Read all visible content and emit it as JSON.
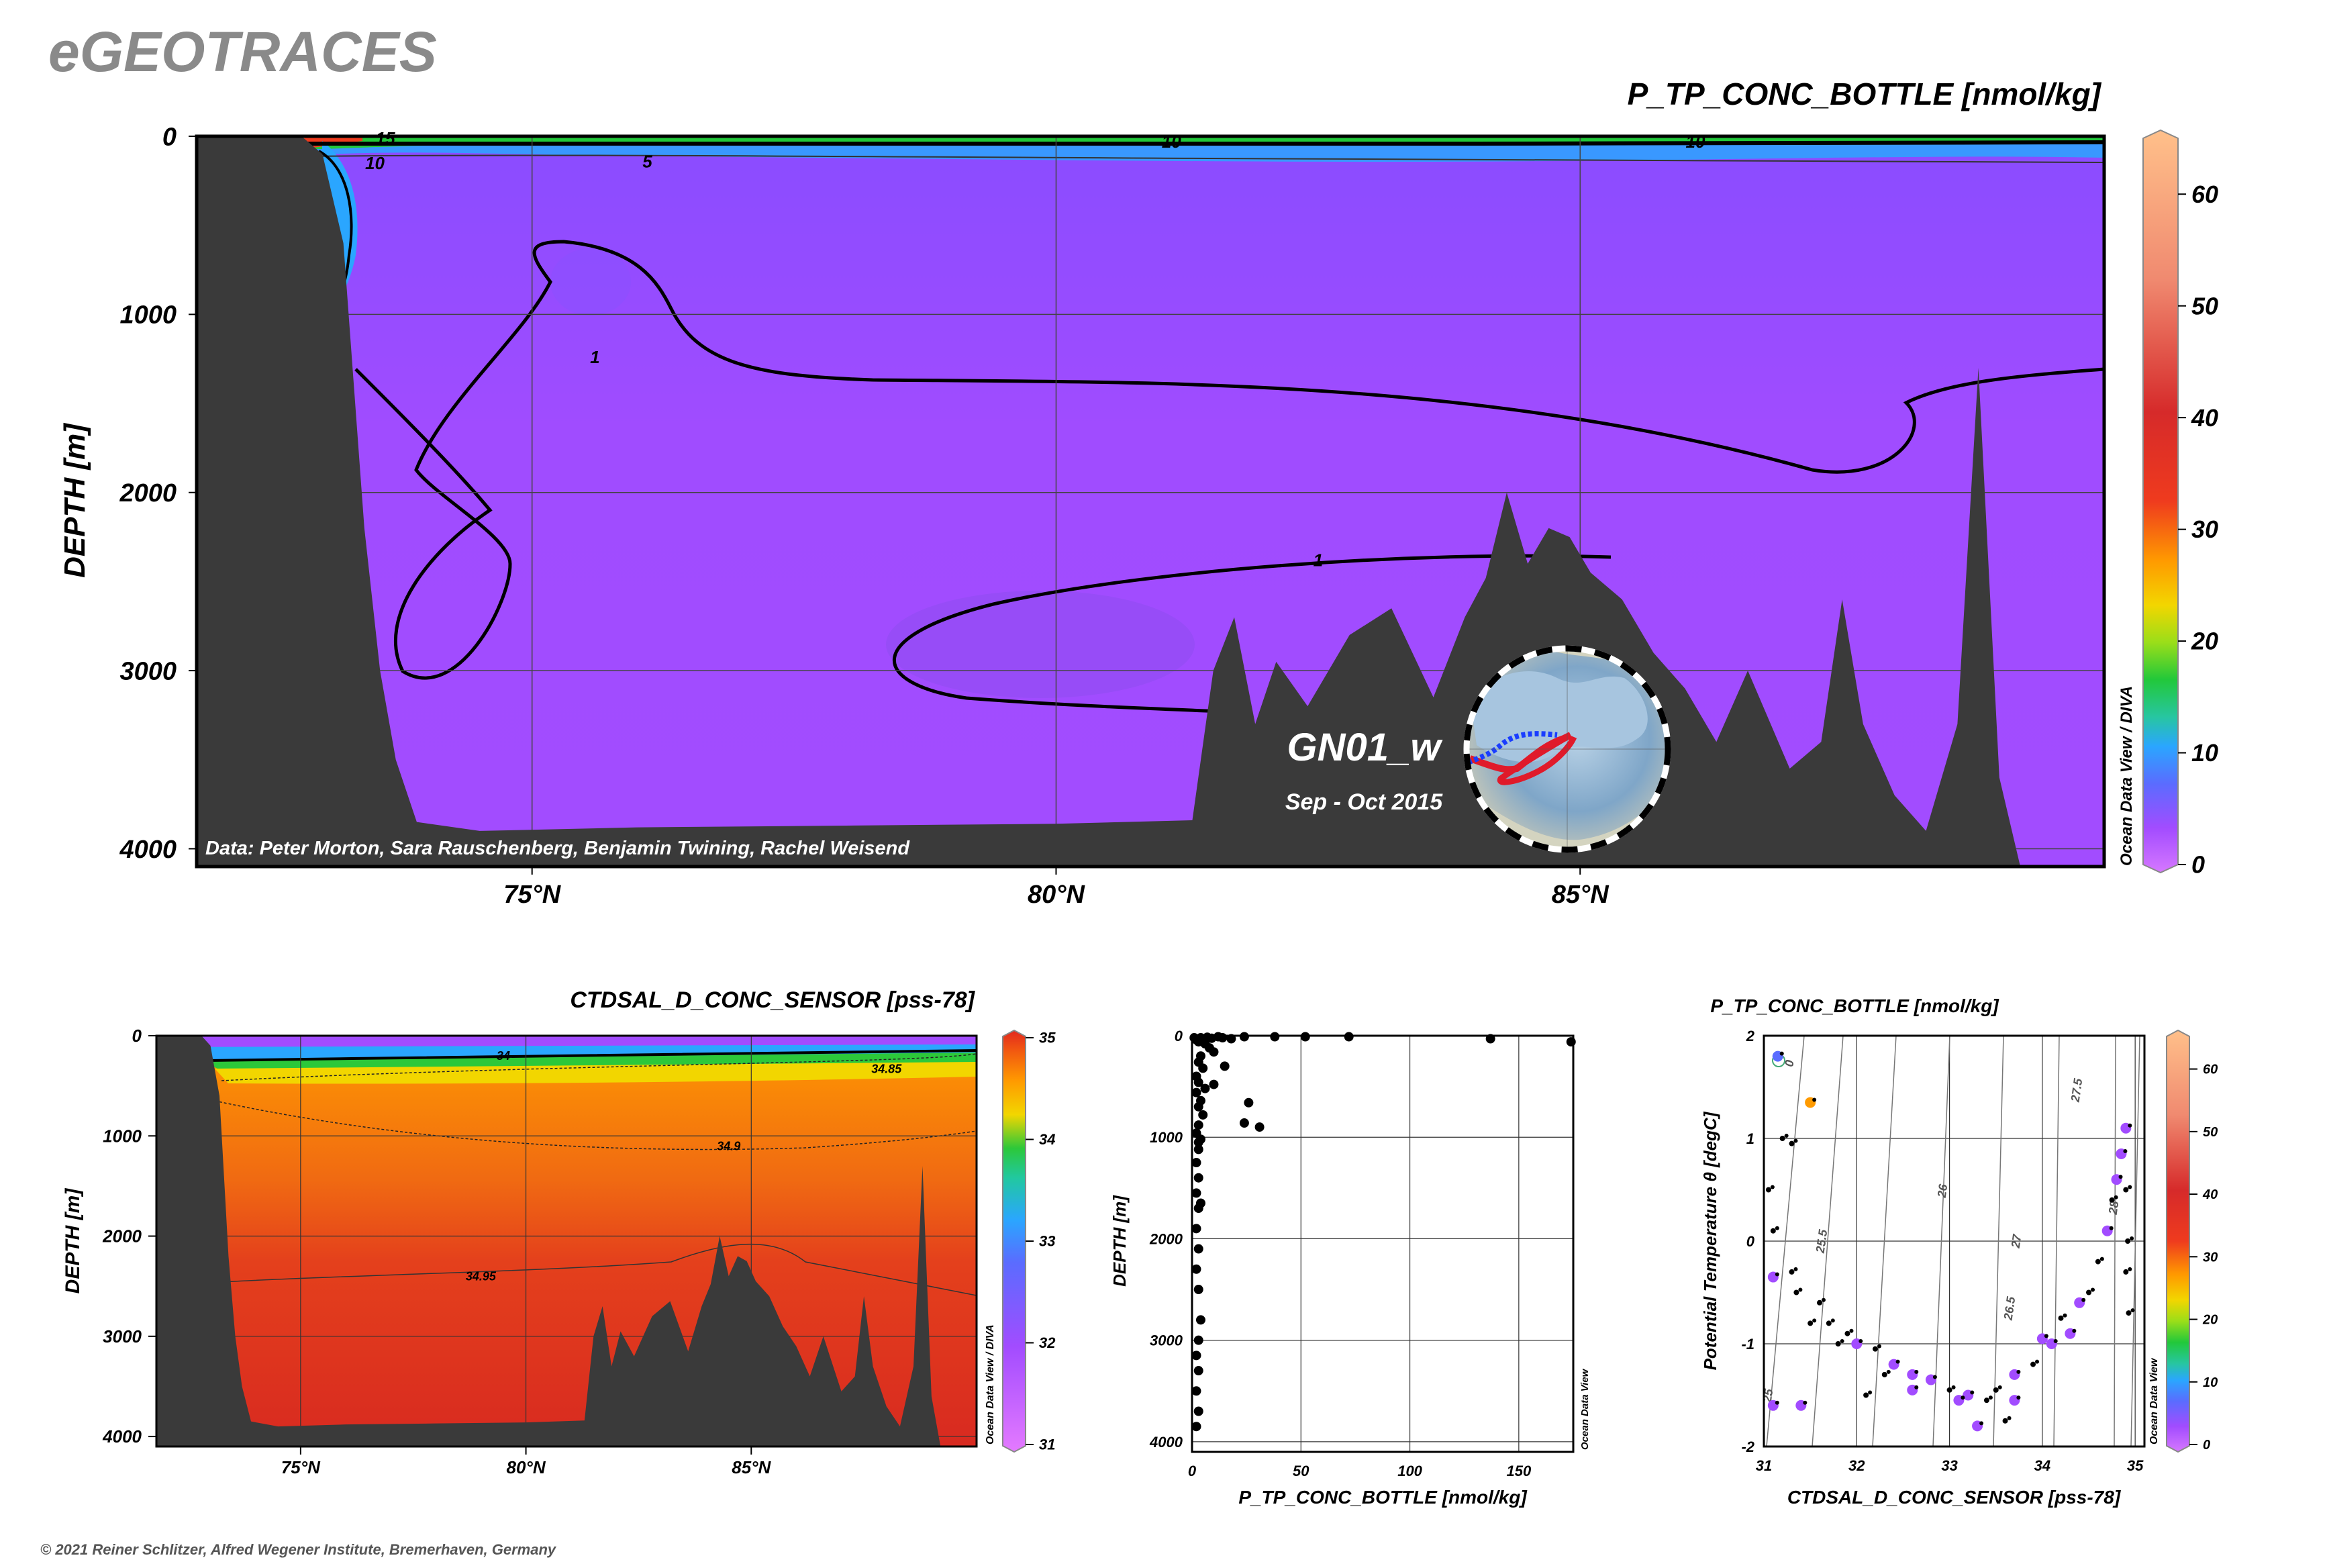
{
  "header": {
    "logo": "eGEOTRACES",
    "copyright": "© 2021 Reiner Schlitzer, Alfred Wegener Institute, Bremerhaven, Germany"
  },
  "colors": {
    "terrain": "#3a3a3a",
    "tp_scale": [
      "#d678ff",
      "#a24cff",
      "#5a6cff",
      "#2aa6ff",
      "#27c6a0",
      "#22c83a",
      "#9ade19",
      "#f2d600",
      "#ff9a00",
      "#ef3b1e",
      "#d62a2a",
      "#f08a70",
      "#ffc08a"
    ],
    "sal_scale": [
      "#e47aff",
      "#a24cff",
      "#5a6cff",
      "#2aa6ff",
      "#21c8a0",
      "#2cc83a",
      "#f2d600",
      "#ff9a00",
      "#f25a10",
      "#e2281e"
    ],
    "profile_points": "#000000",
    "section_fill_tp": "#9b45ff",
    "section_fill_sal": "#e0361c",
    "track_blue": "#1a3dff",
    "track_red": "#e01a2a"
  },
  "chart_data": [
    {
      "id": "main-section",
      "type": "heatmap",
      "title": "P_TP_CONC_BOTTLE [nmol/kg]",
      "ylabel": "DEPTH [m]",
      "xlabel": "",
      "x_ticks": [
        "75°N",
        "80°N",
        "85°N"
      ],
      "x_tick_values": [
        75,
        80,
        85
      ],
      "xlim": [
        71.8,
        90
      ],
      "y_ticks": [
        "0",
        "1000",
        "2000",
        "3000",
        "4000"
      ],
      "y_tick_values": [
        0,
        1000,
        2000,
        3000,
        4000
      ],
      "ylim": [
        0,
        4100
      ],
      "colorbar": {
        "ticks": [
          "0",
          "10",
          "20",
          "30",
          "40",
          "50",
          "60"
        ],
        "tick_values": [
          0,
          10,
          20,
          30,
          40,
          50,
          60
        ],
        "range": [
          0,
          65
        ],
        "label": "Ocean Data View / DIVA"
      },
      "contour_labels": [
        {
          "text": "10",
          "lat": 73.5,
          "depth": 150
        },
        {
          "text": "15",
          "lat": 73.6,
          "depth": 10
        },
        {
          "text": "10",
          "lat": 81.1,
          "depth": 30
        },
        {
          "text": "10",
          "lat": 86.1,
          "depth": 30
        },
        {
          "text": "5",
          "lat": 76.1,
          "depth": 140
        },
        {
          "text": "1",
          "lat": 75.6,
          "depth": 1240
        },
        {
          "text": "1",
          "lat": 82.5,
          "depth": 2380
        }
      ],
      "annotations": {
        "cruise": "GN01_w",
        "period": "Sep - Oct 2015",
        "credit": "Data: Peter Morton, Sara Rauschenberg, Benjamin Twining, Rachel Weisend"
      },
      "bathymetry": [
        [
          71.8,
          0
        ],
        [
          72.8,
          0
        ],
        [
          73.0,
          100
        ],
        [
          73.2,
          600
        ],
        [
          73.3,
          1400
        ],
        [
          73.4,
          2200
        ],
        [
          73.55,
          3000
        ],
        [
          73.7,
          3500
        ],
        [
          73.9,
          3850
        ],
        [
          74.5,
          3900
        ],
        [
          76,
          3880
        ],
        [
          78,
          3870
        ],
        [
          80,
          3860
        ],
        [
          81.3,
          3840
        ],
        [
          81.5,
          3000
        ],
        [
          81.7,
          2700
        ],
        [
          81.9,
          3300
        ],
        [
          82.1,
          2950
        ],
        [
          82.4,
          3200
        ],
        [
          82.8,
          2800
        ],
        [
          83.2,
          2650
        ],
        [
          83.6,
          3150
        ],
        [
          83.9,
          2700
        ],
        [
          84.1,
          2480
        ],
        [
          84.3,
          2000
        ],
        [
          84.5,
          2400
        ],
        [
          84.7,
          2200
        ],
        [
          84.9,
          2250
        ],
        [
          85.1,
          2450
        ],
        [
          85.4,
          2600
        ],
        [
          85.7,
          2900
        ],
        [
          86.0,
          3100
        ],
        [
          86.3,
          3400
        ],
        [
          86.6,
          3000
        ],
        [
          87.0,
          3550
        ],
        [
          87.3,
          3400
        ],
        [
          87.5,
          2600
        ],
        [
          87.7,
          3300
        ],
        [
          88.0,
          3700
        ],
        [
          88.3,
          3900
        ],
        [
          88.6,
          3300
        ],
        [
          88.8,
          1300
        ],
        [
          89.0,
          3600
        ],
        [
          89.2,
          4100
        ],
        [
          90,
          4100
        ]
      ]
    },
    {
      "id": "salinity-section",
      "type": "heatmap",
      "title": "CTDSAL_D_CONC_SENSOR [pss-78]",
      "ylabel": "DEPTH [m]",
      "xlabel": "",
      "x_ticks": [
        "75°N",
        "80°N",
        "85°N"
      ],
      "x_tick_values": [
        75,
        80,
        85
      ],
      "xlim": [
        71.8,
        90
      ],
      "y_ticks": [
        "0",
        "1000",
        "2000",
        "3000",
        "4000"
      ],
      "y_tick_values": [
        0,
        1000,
        2000,
        3000,
        4000
      ],
      "ylim": [
        0,
        4100
      ],
      "colorbar": {
        "ticks": [
          "31",
          "32",
          "33",
          "34",
          "35"
        ],
        "tick_values": [
          31,
          32,
          33,
          34,
          35
        ],
        "range": [
          31,
          35
        ],
        "label": "Ocean Data View / DIVA"
      },
      "contour_labels": [
        {
          "text": "34",
          "lat": 79.5,
          "depth": 200
        },
        {
          "text": "34.85",
          "lat": 88.0,
          "depth": 330
        },
        {
          "text": "34.9",
          "lat": 84.5,
          "depth": 1100
        },
        {
          "text": "34.95",
          "lat": 79.0,
          "depth": 2400
        }
      ]
    },
    {
      "id": "tp-profile",
      "type": "scatter",
      "title": "",
      "xlabel": "P_TP_CONC_BOTTLE [nmol/kg]",
      "ylabel": "DEPTH [m]",
      "x_ticks": [
        "0",
        "50",
        "100",
        "150"
      ],
      "x_tick_values": [
        0,
        50,
        100,
        150
      ],
      "xlim": [
        0,
        175
      ],
      "y_ticks": [
        "0",
        "1000",
        "2000",
        "3000",
        "4000"
      ],
      "y_tick_values": [
        0,
        1000,
        2000,
        3000,
        4000
      ],
      "ylim": [
        0,
        4100
      ],
      "side_label": "Ocean Data View",
      "points": [
        [
          1,
          20
        ],
        [
          2,
          40
        ],
        [
          3,
          60
        ],
        [
          4,
          20
        ],
        [
          5,
          30
        ],
        [
          7,
          15
        ],
        [
          9,
          25
        ],
        [
          12,
          10
        ],
        [
          14,
          20
        ],
        [
          18,
          30
        ],
        [
          24,
          10
        ],
        [
          38,
          10
        ],
        [
          52,
          10
        ],
        [
          72,
          10
        ],
        [
          137,
          30
        ],
        [
          174,
          60
        ],
        [
          6,
          80
        ],
        [
          8,
          120
        ],
        [
          10,
          160
        ],
        [
          4,
          200
        ],
        [
          3,
          260
        ],
        [
          5,
          320
        ],
        [
          2,
          400
        ],
        [
          3,
          460
        ],
        [
          6,
          520
        ],
        [
          10,
          480
        ],
        [
          15,
          300
        ],
        [
          2,
          560
        ],
        [
          4,
          640
        ],
        [
          3,
          700
        ],
        [
          5,
          780
        ],
        [
          3,
          880
        ],
        [
          2,
          960
        ],
        [
          4,
          1020
        ],
        [
          3,
          1120
        ],
        [
          2,
          1250
        ],
        [
          3,
          1400
        ],
        [
          2,
          1550
        ],
        [
          3,
          1700
        ],
        [
          2,
          1900
        ],
        [
          3,
          2100
        ],
        [
          2,
          2300
        ],
        [
          3,
          2500
        ],
        [
          4,
          2800
        ],
        [
          3,
          3000
        ],
        [
          2,
          3150
        ],
        [
          3,
          3300
        ],
        [
          2,
          3500
        ],
        [
          3,
          3700
        ],
        [
          2,
          3850
        ],
        [
          26,
          660
        ],
        [
          24,
          860
        ],
        [
          31,
          900
        ],
        [
          3,
          1050
        ],
        [
          4,
          1650
        ]
      ]
    },
    {
      "id": "ts-diagram",
      "type": "scatter",
      "title": "P_TP_CONC_BOTTLE [nmol/kg]",
      "xlabel": "CTDSAL_D_CONC_SENSOR [pss-78]",
      "ylabel": "Potential Temperature θ [degC]",
      "x_ticks": [
        "31",
        "32",
        "33",
        "34",
        "35"
      ],
      "x_tick_values": [
        31,
        32,
        33,
        34,
        35
      ],
      "xlim": [
        31,
        35.1
      ],
      "y_ticks": [
        "-2",
        "-1",
        "0",
        "1",
        "2"
      ],
      "y_tick_values": [
        -2,
        -1,
        0,
        1,
        2
      ],
      "ylim": [
        -2,
        2
      ],
      "isopycnal_labels": [
        "0",
        "25",
        "25.5",
        "26",
        "26.5",
        "27",
        "27.5",
        "28"
      ],
      "colorbar": {
        "ticks": [
          "0",
          "10",
          "20",
          "30",
          "40",
          "50",
          "60"
        ],
        "tick_values": [
          0,
          10,
          20,
          30,
          40,
          50,
          60
        ],
        "range": [
          0,
          65
        ],
        "label": "Ocean Data View"
      },
      "points": [
        [
          31.15,
          1.8,
          10
        ],
        [
          31.2,
          1.0,
          2
        ],
        [
          31.3,
          0.95,
          1
        ],
        [
          31.5,
          1.35,
          45
        ],
        [
          31.05,
          0.5,
          1
        ],
        [
          31.1,
          0.1,
          3
        ],
        [
          31.1,
          -0.35,
          5
        ],
        [
          31.3,
          -0.3,
          2
        ],
        [
          31.35,
          -0.5,
          1
        ],
        [
          31.6,
          -0.6,
          2
        ],
        [
          31.7,
          -0.8,
          3
        ],
        [
          31.9,
          -0.9,
          2
        ],
        [
          32.0,
          -1.0,
          4
        ],
        [
          32.2,
          -1.05,
          3
        ],
        [
          32.4,
          -1.2,
          5
        ],
        [
          32.6,
          -1.3,
          4
        ],
        [
          32.8,
          -1.35,
          6
        ],
        [
          33.0,
          -1.45,
          3
        ],
        [
          33.2,
          -1.5,
          4
        ],
        [
          33.4,
          -1.55,
          3
        ],
        [
          33.5,
          -1.45,
          2
        ],
        [
          33.7,
          -1.3,
          4
        ],
        [
          33.9,
          -1.2,
          3
        ],
        [
          34.1,
          -1.0,
          5
        ],
        [
          34.3,
          -0.9,
          4
        ],
        [
          34.5,
          -0.5,
          3
        ],
        [
          34.6,
          -0.2,
          2
        ],
        [
          34.7,
          0.1,
          4
        ],
        [
          34.75,
          0.4,
          3
        ],
        [
          34.8,
          0.6,
          5
        ],
        [
          34.85,
          0.85,
          6
        ],
        [
          34.9,
          1.1,
          4
        ],
        [
          34.9,
          0.5,
          3
        ],
        [
          34.92,
          0.0,
          2
        ],
        [
          34.9,
          -0.3,
          3
        ],
        [
          34.93,
          -0.7,
          1
        ],
        [
          31.1,
          -1.6,
          4
        ],
        [
          31.4,
          -1.6,
          6
        ],
        [
          32.1,
          -1.5,
          3
        ],
        [
          32.6,
          -1.45,
          7
        ],
        [
          33.1,
          -1.55,
          5
        ],
        [
          33.3,
          -1.8,
          4
        ],
        [
          33.6,
          -1.75,
          3
        ],
        [
          33.7,
          -1.55,
          4
        ],
        [
          32.3,
          -1.3,
          3
        ],
        [
          31.8,
          -1.0,
          2
        ],
        [
          31.5,
          -0.8,
          1
        ],
        [
          34.0,
          -0.95,
          6
        ],
        [
          34.2,
          -0.75,
          3
        ],
        [
          34.4,
          -0.6,
          4
        ]
      ]
    }
  ]
}
